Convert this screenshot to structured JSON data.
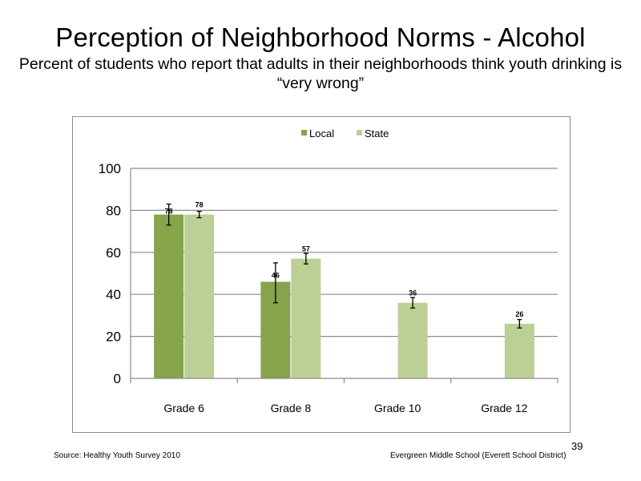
{
  "slide": {
    "title": "Perception  of Neighborhood  Norms - Alcohol",
    "subtitle": "Percent of students  who report that adults in their neighborhoods  think youth drinking  is “very wrong”",
    "source": "Source: Healthy Youth Survey 2010",
    "school": "Evergreen Middle  School  (Everett School District)",
    "page_number": "39"
  },
  "chart_data": {
    "type": "bar",
    "categories": [
      "Grade 6",
      "Grade 8",
      "Grade 10",
      "Grade 12"
    ],
    "series": [
      {
        "name": "Local",
        "color": "#86a44a",
        "values": [
          78,
          46,
          null,
          null
        ],
        "labels": [
          "78",
          "46",
          "",
          ""
        ],
        "error": [
          [
            73,
            83
          ],
          [
            36,
            55
          ],
          null,
          null
        ]
      },
      {
        "name": "State",
        "color": "#bccf95",
        "values": [
          78,
          57,
          36,
          26
        ],
        "labels": [
          "78",
          "57",
          "36",
          "26"
        ],
        "error": [
          [
            76.5,
            79.5
          ],
          [
            54.5,
            59.5
          ],
          [
            33.5,
            38.5
          ],
          [
            24,
            28
          ]
        ]
      }
    ],
    "ylim": [
      0,
      100
    ],
    "yticks": [
      "0",
      "20",
      "40",
      "60",
      "80",
      "100"
    ],
    "grid": true,
    "legend": "top-center"
  }
}
